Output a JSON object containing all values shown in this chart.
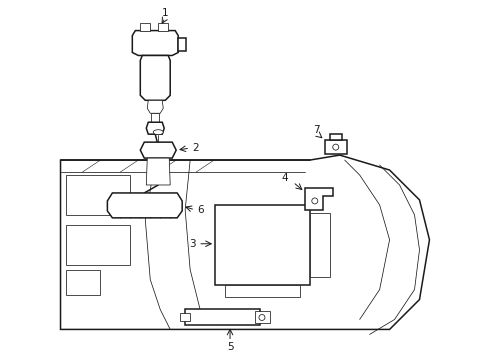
{
  "background_color": "#ffffff",
  "line_color": "#1a1a1a",
  "figsize": [
    4.89,
    3.6
  ],
  "dpi": 100,
  "lw_main": 1.1,
  "lw_thin": 0.55,
  "lw_detail": 0.4,
  "label_fontsize": 7.5
}
